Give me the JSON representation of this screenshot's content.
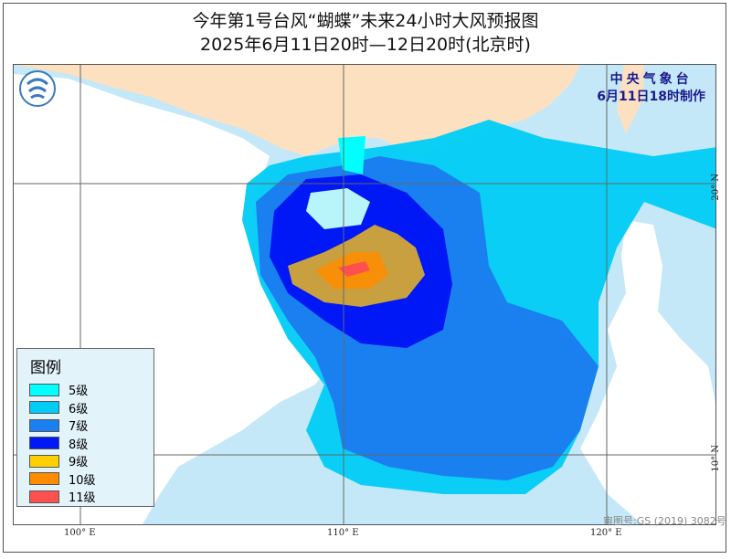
{
  "title_line1": "今年第1号台风“蝴蝶”未来24小时大风预报图",
  "title_line2": "2025年6月11日20时—12日20时(北京时)",
  "agency": "中央气象台",
  "issued": "6月11日18时制作",
  "legend": {
    "title": "图例",
    "items": [
      {
        "label": "5级",
        "color": "#00ffff"
      },
      {
        "label": "6级",
        "color": "#00ccf5"
      },
      {
        "label": "7级",
        "color": "#1a80f0"
      },
      {
        "label": "8级",
        "color": "#0018f5"
      },
      {
        "label": "9级",
        "color": "#ffd000"
      },
      {
        "label": "10级",
        "color": "#ff8c00"
      },
      {
        "label": "11级",
        "color": "#ff5050"
      }
    ]
  },
  "axis_labels": {
    "lon100": "100° E",
    "lon110": "110° E",
    "lon120": "120° E",
    "lat20": "20° N",
    "lat10": "10° N"
  },
  "map_approval": "审图号:GS (2019) 3082号",
  "colors": {
    "land": "#fde0c0",
    "inland": "#ffffff",
    "sea": "#c4e8f8"
  }
}
